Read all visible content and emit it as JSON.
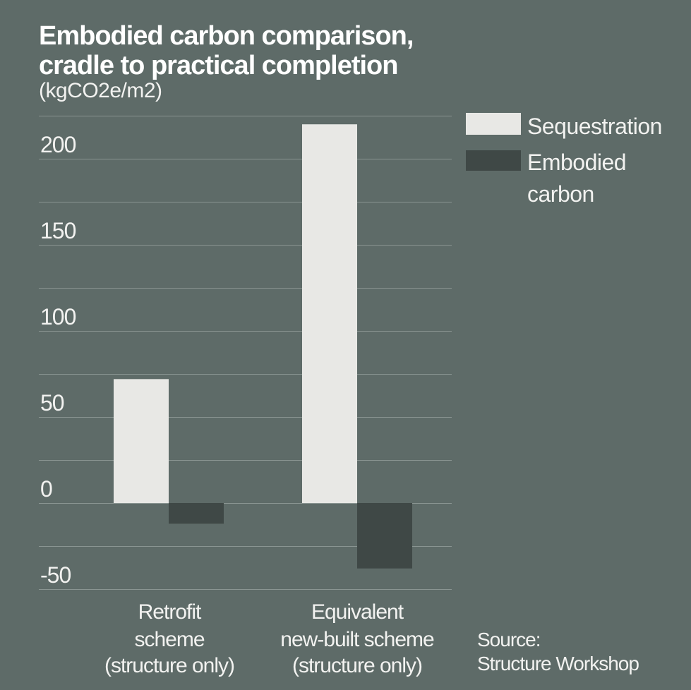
{
  "title_lines": [
    "Embodied carbon comparison,",
    "cradle to practical completion"
  ],
  "subtitle": "(kgCO2e/m2)",
  "source_lines": [
    "Source:",
    "Structure Workshop"
  ],
  "colors": {
    "background": "#5e6b68",
    "gridline": "#8a9592",
    "sequestration": "#e8e8e5",
    "embodied_carbon": "#3f4846",
    "text": "#f2f2f0"
  },
  "chart_data": {
    "type": "bar",
    "title": "Embodied carbon comparison, cradle to practical completion",
    "ylabel": "(kgCO2e/m2)",
    "xlabel": "",
    "categories": [
      [
        "Retrofit",
        "scheme",
        "(structure only)"
      ],
      [
        "Equivalent",
        "new-built scheme",
        "(structure only)"
      ]
    ],
    "series": [
      {
        "name": "Sequestration",
        "values": [
          72,
          220
        ]
      },
      {
        "name": "Embodied carbon",
        "values": [
          -12,
          -38
        ]
      }
    ],
    "ylim": [
      -50,
      225
    ],
    "yticks": [
      -50,
      0,
      50,
      100,
      150,
      200
    ],
    "ytick_labels": [
      "-50",
      "0",
      "50",
      "100",
      "150",
      "200"
    ],
    "grid": true,
    "legend_placement": "top-right",
    "legend_lines": [
      [
        "Sequestration"
      ],
      [
        "Embodied",
        "carbon"
      ]
    ]
  }
}
